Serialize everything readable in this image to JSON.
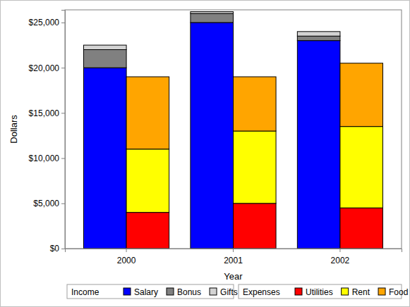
{
  "chart_data": {
    "type": "bar",
    "stacked": true,
    "x_label": "Year",
    "y_label": "Dollars",
    "categories": [
      "2000",
      "2001",
      "2002"
    ],
    "ylim": [
      0,
      26400
    ],
    "yticks": [
      {
        "value": 0,
        "label": "$0"
      },
      {
        "value": 5000,
        "label": "$5,000"
      },
      {
        "value": 10000,
        "label": "$10,000"
      },
      {
        "value": 15000,
        "label": "$15,000"
      },
      {
        "value": 20000,
        "label": "$20,000"
      },
      {
        "value": 25000,
        "label": "$25,000"
      }
    ],
    "groups": [
      {
        "name": "Income",
        "series": [
          {
            "name": "Salary",
            "color": "#0000ff",
            "values": [
              20000,
              25000,
              23000
            ]
          },
          {
            "name": "Bonus",
            "color": "#808080",
            "values": [
              2000,
              1000,
              500
            ]
          },
          {
            "name": "Gifts",
            "color": "#d3d3d3",
            "values": [
              500,
              200,
              500
            ]
          }
        ]
      },
      {
        "name": "Expenses",
        "series": [
          {
            "name": "Utilities",
            "color": "#ff0000",
            "values": [
              4000,
              5000,
              4500
            ]
          },
          {
            "name": "Rent",
            "color": "#ffff00",
            "values": [
              7000,
              8000,
              9000
            ]
          },
          {
            "name": "Food",
            "color": "#ffa500",
            "values": [
              8000,
              6000,
              7000
            ]
          }
        ]
      }
    ]
  }
}
